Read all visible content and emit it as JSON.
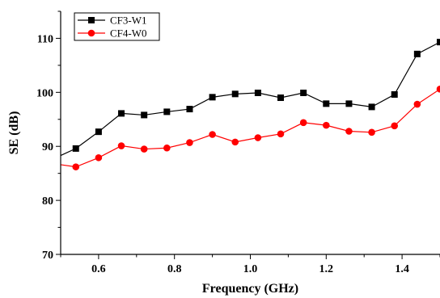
{
  "chart_data": {
    "type": "line",
    "xlabel": "Frequency (GHz)",
    "ylabel": "SE (dB)",
    "xlim": [
      0.5,
      1.5
    ],
    "ylim": [
      70,
      115
    ],
    "xticks": [
      0.6,
      0.8,
      1.0,
      1.2,
      1.4
    ],
    "xtick_labels": [
      "0.6",
      "0.8",
      "1.0",
      "1.2",
      "1.4"
    ],
    "yticks": [
      70,
      80,
      90,
      100,
      110
    ],
    "ytick_labels": [
      "70",
      "80",
      "90",
      "100",
      "110"
    ],
    "grid": false,
    "legend_position": "top-left",
    "x": [
      0.54,
      0.6,
      0.66,
      0.72,
      0.78,
      0.84,
      0.9,
      0.96,
      1.02,
      1.08,
      1.14,
      1.2,
      1.26,
      1.32,
      1.38,
      1.44,
      1.5
    ],
    "series": [
      {
        "name": "CF3-W1",
        "color": "#000000",
        "marker": "square",
        "start": [
          0.5,
          88.3
        ],
        "values": [
          89.6,
          92.7,
          96.1,
          95.8,
          96.4,
          96.9,
          99.1,
          99.7,
          99.9,
          99.0,
          99.9,
          97.9,
          97.9,
          97.3,
          99.6,
          107.1,
          109.3
        ]
      },
      {
        "name": "CF4-W0",
        "color": "#ff0000",
        "marker": "circle",
        "start": [
          0.5,
          86.6
        ],
        "values": [
          86.2,
          87.9,
          90.1,
          89.5,
          89.7,
          90.7,
          92.2,
          90.8,
          91.6,
          92.3,
          94.4,
          93.9,
          92.8,
          92.6,
          93.8,
          97.8,
          100.6
        ]
      }
    ]
  }
}
